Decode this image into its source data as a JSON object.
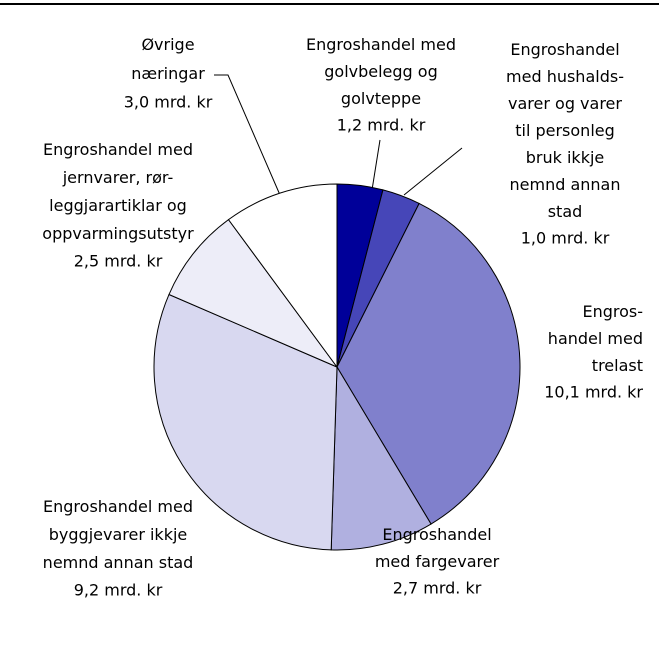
{
  "chart_data": {
    "type": "pie",
    "categories": [
      "Engroshandel med\ngolvbelegg og\ngolvteppe",
      "Engroshandel\nmed hushalds-\nvarer og varer\ntil personleg\nbruk ikkje\nnemnd annan\nstad",
      "Engros-\nhandel med\ntrelast",
      "Engroshandel\nmed fargevarer",
      "Engroshandel med\nbyggjevarer ikkje\nnemnd annan stad",
      "Engroshandel med\njernvarer, rør-\nleggjarartiklar og\noppvarmingsutstyr",
      "Øvrige\nnæringar"
    ],
    "values": [
      1.2,
      1.0,
      10.1,
      2.7,
      9.2,
      2.5,
      3.0
    ],
    "value_labels": [
      "1,2 mrd. kr",
      "1,0 mrd. kr",
      "10,1 mrd. kr",
      "2,7 mrd. kr",
      "9,2 mrd. kr",
      "2,5 mrd. kr",
      "3,0 mrd. kr"
    ],
    "colors": [
      "#000099",
      "#4646b8",
      "#8080cc",
      "#b0b0e0",
      "#d8d8f0",
      "#ededf8",
      "#ffffff"
    ]
  }
}
